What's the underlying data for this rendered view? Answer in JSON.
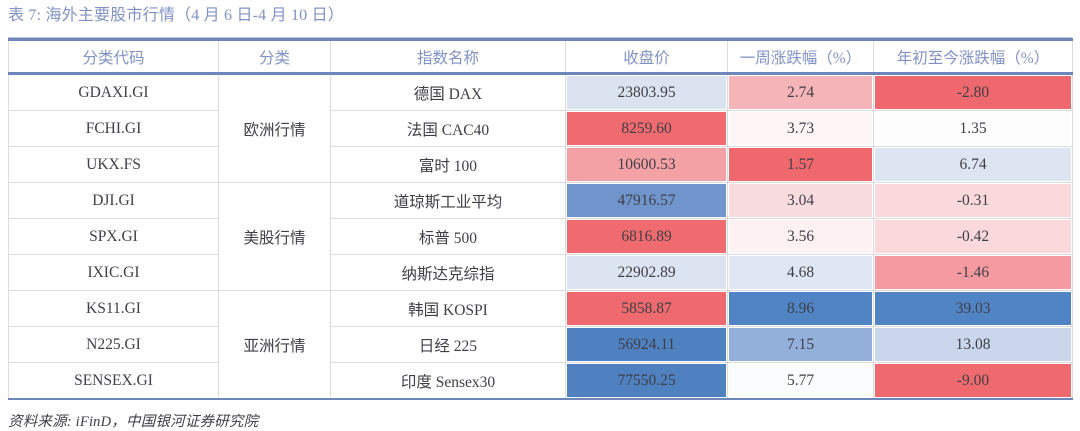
{
  "title": "表 7: 海外主要股市行情（4 月 6 日-4 月 10 日）",
  "source_note": "资料来源: iFinD，中国银河证券研究院",
  "colors": {
    "title_text": "#8192C5",
    "header_text": "#8192C5",
    "heavy_border_blue": "#6E87BA",
    "grid_gray": "#DCDCDC",
    "body_text": "#3F3F46",
    "strong_red": "#EE686D",
    "strong_blue": "#5083C4"
  },
  "table": {
    "headers": [
      "分类代码",
      "分类",
      "指数名称",
      "收盘价",
      "一周涨跌幅（%）",
      "年初至今涨跌幅（%）"
    ],
    "groups": [
      {
        "category": "欧洲行情",
        "rows": [
          {
            "code": "GDAXI.GI",
            "index_name": "德国 DAX",
            "close": {
              "value": "23803.95",
              "bg": "#DBE3F1"
            },
            "week_change": {
              "value": "2.74",
              "bg": "#F5B4B7"
            },
            "ytd_change": {
              "value": "-2.80",
              "bg": "#EE686D"
            }
          },
          {
            "code": "FCHI.GI",
            "index_name": "法国 CAC40",
            "close": {
              "value": "8259.60",
              "bg": "#EF6B70"
            },
            "week_change": {
              "value": "3.73",
              "bg": "#FDF5F6"
            },
            "ytd_change": {
              "value": "1.35",
              "bg": "#FDFDFE"
            }
          },
          {
            "code": "UKX.FS",
            "index_name": "富时 100",
            "close": {
              "value": "10600.53",
              "bg": "#F4A1A6"
            },
            "week_change": {
              "value": "1.57",
              "bg": "#EE686D"
            },
            "ytd_change": {
              "value": "6.74",
              "bg": "#DCE5F1"
            }
          }
        ]
      },
      {
        "category": "美股行情",
        "rows": [
          {
            "code": "DJI.GI",
            "index_name": "道琼斯工业平均",
            "close": {
              "value": "47916.57",
              "bg": "#7094CC"
            },
            "week_change": {
              "value": "3.04",
              "bg": "#F9DCE0"
            },
            "ytd_change": {
              "value": "-0.31",
              "bg": "#FAD9DD"
            }
          },
          {
            "code": "SPX.GI",
            "index_name": "标普 500",
            "close": {
              "value": "6816.89",
              "bg": "#EF6B70"
            },
            "week_change": {
              "value": "3.56",
              "bg": "#FDF1F2"
            },
            "ytd_change": {
              "value": "-0.42",
              "bg": "#FAD8DB"
            }
          },
          {
            "code": "IXIC.GI",
            "index_name": "纳斯达克综指",
            "close": {
              "value": "22902.89",
              "bg": "#DDE4F1"
            },
            "week_change": {
              "value": "4.68",
              "bg": "#DFE7F5"
            },
            "ytd_change": {
              "value": "-1.46",
              "bg": "#F59AA0"
            }
          }
        ]
      },
      {
        "category": "亚洲行情",
        "rows": [
          {
            "code": "KS11.GI",
            "index_name": "韩国 KOSPI",
            "close": {
              "value": "5858.87",
              "bg": "#EE6A6E"
            },
            "week_change": {
              "value": "8.96",
              "bg": "#5184C5"
            },
            "ytd_change": {
              "value": "39.03",
              "bg": "#5184C5"
            }
          },
          {
            "code": "N225.GI",
            "index_name": "日经 225",
            "close": {
              "value": "56924.11",
              "bg": "#4F81C1"
            },
            "week_change": {
              "value": "7.15",
              "bg": "#93B0DA"
            },
            "ytd_change": {
              "value": "13.08",
              "bg": "#C9D6EC"
            }
          },
          {
            "code": "SENSEX.GI",
            "index_name": "印度 Sensex30",
            "close": {
              "value": "77550.25",
              "bg": "#4F81C1"
            },
            "week_change": {
              "value": "5.77",
              "bg": "#FBFCFE"
            },
            "ytd_change": {
              "value": "-9.00",
              "bg": "#EE6A6E"
            }
          }
        ]
      }
    ]
  }
}
